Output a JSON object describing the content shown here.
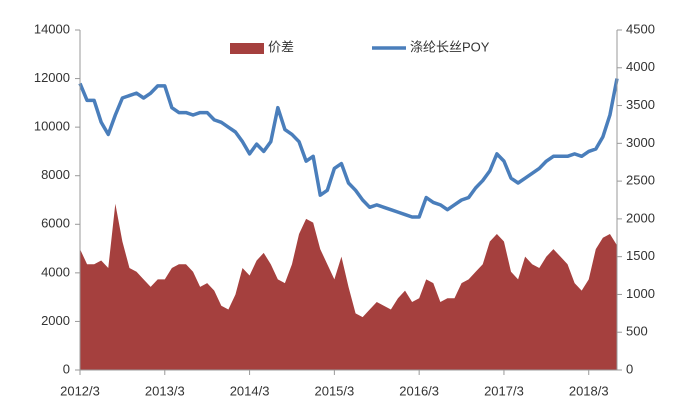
{
  "chart_data": {
    "type": "area_line_dual",
    "categories": [
      "2012/3",
      null,
      null,
      null,
      null,
      null,
      null,
      null,
      null,
      null,
      null,
      null,
      "2013/3",
      null,
      null,
      null,
      null,
      null,
      null,
      null,
      null,
      null,
      null,
      null,
      "2014/3",
      null,
      null,
      null,
      null,
      null,
      null,
      null,
      null,
      null,
      null,
      null,
      "2015/3",
      null,
      null,
      null,
      null,
      null,
      null,
      null,
      null,
      null,
      null,
      null,
      "2016/3",
      null,
      null,
      null,
      null,
      null,
      null,
      null,
      null,
      null,
      null,
      null,
      "2017/3",
      null,
      null,
      null,
      null,
      null,
      null,
      null,
      null,
      null,
      null,
      null,
      "2018/3",
      null,
      null,
      null,
      null
    ],
    "series": [
      {
        "name": "价差",
        "color": "#a5403e",
        "axis": "y2",
        "kind": "area",
        "values": [
          1600,
          1400,
          1400,
          1450,
          1350,
          2200,
          1700,
          1350,
          1300,
          1200,
          1100,
          1200,
          1200,
          1350,
          1400,
          1400,
          1300,
          1100,
          1150,
          1050,
          850,
          800,
          1000,
          1350,
          1250,
          1450,
          1550,
          1400,
          1200,
          1150,
          1400,
          1800,
          2000,
          1950,
          1600,
          1400,
          1200,
          1500,
          1100,
          750,
          700,
          800,
          900,
          850,
          800,
          950,
          1050,
          900,
          950,
          1200,
          1150,
          900,
          950,
          950,
          1150,
          1200,
          1300,
          1400,
          1700,
          1800,
          1700,
          1300,
          1200,
          1500,
          1400,
          1350,
          1500,
          1600,
          1500,
          1400,
          1150,
          1050,
          1200,
          1600,
          1750,
          1800,
          1650
        ]
      },
      {
        "name": "涤纶长丝POY",
        "color": "#4a7ebb",
        "kind": "line",
        "values": [
          11800,
          11100,
          11100,
          10200,
          9700,
          10500,
          11200,
          11300,
          11400,
          11200,
          11400,
          11700,
          11700,
          10800,
          10600,
          10600,
          10500,
          10600,
          10600,
          10300,
          10200,
          10000,
          9800,
          9400,
          8900,
          9300,
          9000,
          9400,
          10800,
          9900,
          9700,
          9400,
          8600,
          8800,
          7200,
          7400,
          8300,
          8500,
          7700,
          7400,
          7000,
          6700,
          6800,
          6700,
          6600,
          6500,
          6400,
          6300,
          6300,
          7100,
          6900,
          6800,
          6600,
          6800,
          7000,
          7100,
          7500,
          7800,
          8200,
          8900,
          8600,
          7900,
          7700,
          7900,
          8100,
          8300,
          8600,
          8800,
          8800,
          8800,
          8900,
          8800,
          9000,
          9100,
          9600,
          10500,
          12000
        ]
      }
    ],
    "ylim": [
      0,
      14000
    ],
    "yticks": [
      0,
      2000,
      4000,
      6000,
      8000,
      10000,
      12000,
      14000
    ],
    "y2lim": [
      0,
      4500
    ],
    "y2ticks": [
      0,
      500,
      1000,
      1500,
      2000,
      2500,
      3000,
      3500,
      4000,
      4500
    ]
  }
}
